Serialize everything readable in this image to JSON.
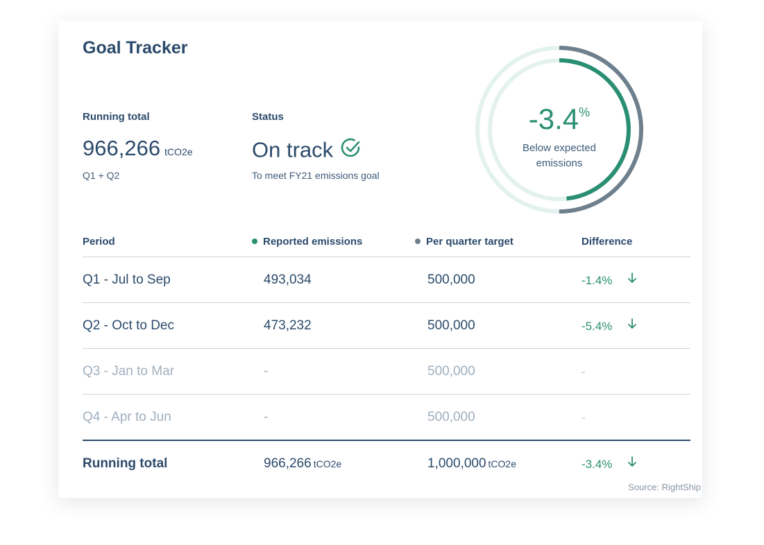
{
  "title": "Goal Tracker",
  "running_total": {
    "label": "Running total",
    "value": "966,266",
    "unit": "tCO2e",
    "sub": "Q1 + Q2"
  },
  "status": {
    "label": "Status",
    "value": "On track",
    "sub": "To meet FY21 emissions goal",
    "icon": "check-circle-icon"
  },
  "gauge": {
    "value": "-3.4",
    "unit": "%",
    "caption_line1": "Below expected",
    "caption_line2": "emissions",
    "reported_fraction": 0.483,
    "target_fraction": 0.5
  },
  "table": {
    "headers": {
      "period": "Period",
      "reported": "Reported emissions",
      "target": "Per quarter target",
      "difference": "Difference"
    },
    "rows": [
      {
        "period": "Q1 - Jul to Sep",
        "reported": "493,034",
        "target": "500,000",
        "difference": "-1.4%"
      },
      {
        "period": "Q2 - Oct to Dec",
        "reported": "473,232",
        "target": "500,000",
        "difference": "-5.4%"
      },
      {
        "period": "Q3 - Jan to Mar",
        "reported": "-",
        "target": "500,000",
        "difference": "-"
      },
      {
        "period": "Q4 - Apr to Jun",
        "reported": "-",
        "target": "500,000",
        "difference": "-"
      }
    ],
    "total": {
      "period": "Running total",
      "reported": "966,266",
      "reported_unit": "tCO2e",
      "target": "1,000,000",
      "target_unit": "tCO2e",
      "difference": "-3.4%"
    }
  },
  "source": "Source: RightShip",
  "colors": {
    "primary_text": "#2b4a6b",
    "accent_green": "#2a8f72",
    "target_gray": "#6e7f8d",
    "ring_light": "#e3f2ee",
    "muted_text": "#9fafbf"
  }
}
